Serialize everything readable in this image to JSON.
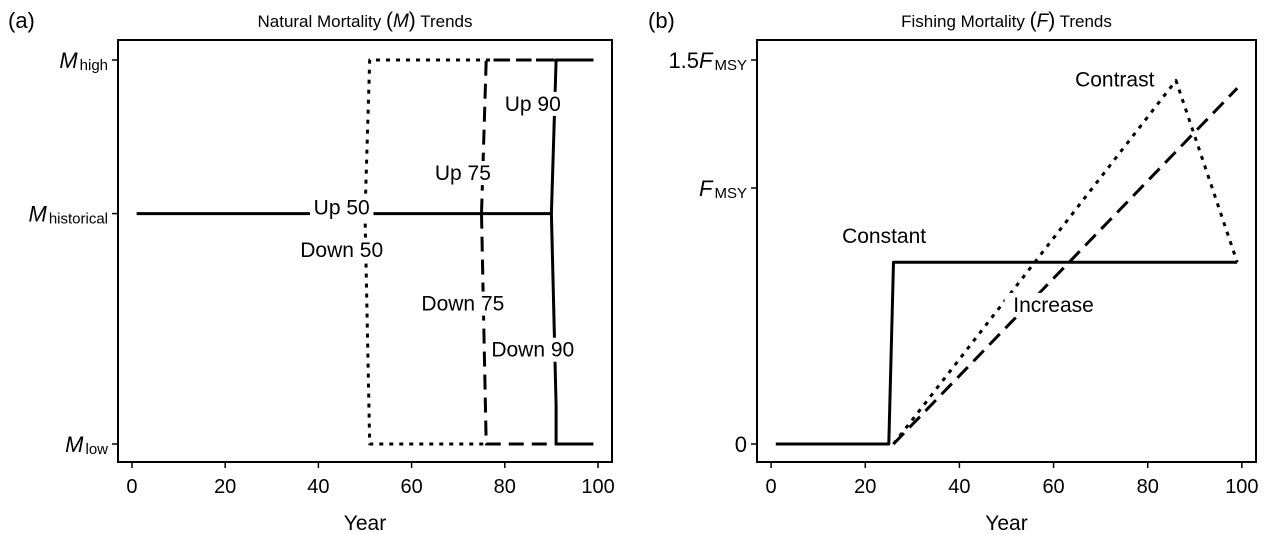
{
  "chart_data": [
    {
      "panel": "(a)",
      "type": "line",
      "title": "Natural Mortality (M) Trends",
      "title_parts": {
        "pre": "Natural Mortality ",
        "open": "(",
        "var": "M",
        "close": ")",
        "post": " Trends"
      },
      "xlabel": "Year",
      "ylabel": "",
      "xlim": [
        -3,
        103
      ],
      "ylim": [
        0,
        1
      ],
      "x_ticks": [
        0,
        20,
        40,
        60,
        80,
        100
      ],
      "x_tick_labels": [
        "0",
        "20",
        "40",
        "60",
        "80",
        "100"
      ],
      "y_ticks": [
        {
          "value": 1.0,
          "main": "M",
          "sub": "high"
        },
        {
          "value": 0.6,
          "main": "M",
          "sub": "historical"
        },
        {
          "value": 0.0,
          "main": "M",
          "sub": "low"
        }
      ],
      "series": [
        {
          "style": "solid",
          "x": [
            1,
            90,
            91,
            91,
            99
          ],
          "y": [
            0.6,
            0.6,
            1.0,
            1.0,
            1.0
          ]
        },
        {
          "style": "solid",
          "x": [
            90,
            91,
            91,
            99
          ],
          "y": [
            0.6,
            0.1,
            0.0,
            0.0
          ]
        },
        {
          "style": "dotted",
          "x": [
            50,
            51,
            99
          ],
          "y": [
            0.6,
            1.0,
            1.0
          ]
        },
        {
          "style": "dotted",
          "x": [
            50,
            51,
            76
          ],
          "y": [
            0.6,
            0.0,
            0.0
          ]
        },
        {
          "style": "dashed",
          "x": [
            75,
            76,
            99
          ],
          "y": [
            0.6,
            1.0,
            1.0
          ]
        },
        {
          "style": "dashed",
          "x": [
            75,
            76,
            99
          ],
          "y": [
            0.6,
            0.0,
            0.0
          ]
        }
      ],
      "annotations": [
        {
          "text": "Up 90",
          "x": 86,
          "y": 0.87
        },
        {
          "text": "Up 75",
          "x": 71,
          "y": 0.69
        },
        {
          "text": "Up 50",
          "x": 45,
          "y": 0.6
        },
        {
          "text": "Down 50",
          "x": 45,
          "y": 0.49
        },
        {
          "text": "Down 75",
          "x": 71,
          "y": 0.35
        },
        {
          "text": "Down 90",
          "x": 86,
          "y": 0.23
        }
      ]
    },
    {
      "panel": "(b)",
      "type": "line",
      "title": "Fishing Mortality (F) Trends",
      "title_parts": {
        "pre": "Fishing Mortality ",
        "open": "(",
        "var": "F",
        "close": ")",
        "post": " Trends"
      },
      "xlabel": "Year",
      "ylabel": "",
      "xlim": [
        -3,
        103
      ],
      "ylim": [
        0,
        1.5
      ],
      "x_ticks": [
        0,
        20,
        40,
        60,
        80,
        100
      ],
      "x_tick_labels": [
        "0",
        "20",
        "40",
        "60",
        "80",
        "100"
      ],
      "y_ticks": [
        {
          "value": 1.5,
          "pre": "1.5",
          "main": "F",
          "sub": "MSY"
        },
        {
          "value": 1.0,
          "pre": "",
          "main": "F",
          "sub": "MSY"
        },
        {
          "value": 0.0,
          "pre": "",
          "main": "0",
          "sub": ""
        }
      ],
      "series": [
        {
          "name": "Constant",
          "style": "solid",
          "x": [
            1,
            25,
            26,
            99
          ],
          "y": [
            0.0,
            0.0,
            0.71,
            0.71
          ]
        },
        {
          "name": "Contrast",
          "style": "dotted",
          "x": [
            26,
            86,
            99
          ],
          "y": [
            0.0,
            1.42,
            0.71
          ]
        },
        {
          "name": "Increase",
          "style": "dashed",
          "x": [
            26,
            99
          ],
          "y": [
            0.0,
            1.39
          ]
        }
      ],
      "annotations": [
        {
          "text": "Constant",
          "x": 24,
          "y": 0.79
        },
        {
          "text": "Contrast",
          "x": 73,
          "y": 1.4
        },
        {
          "text": "Increase",
          "x": 60,
          "y": 0.52
        }
      ]
    }
  ]
}
